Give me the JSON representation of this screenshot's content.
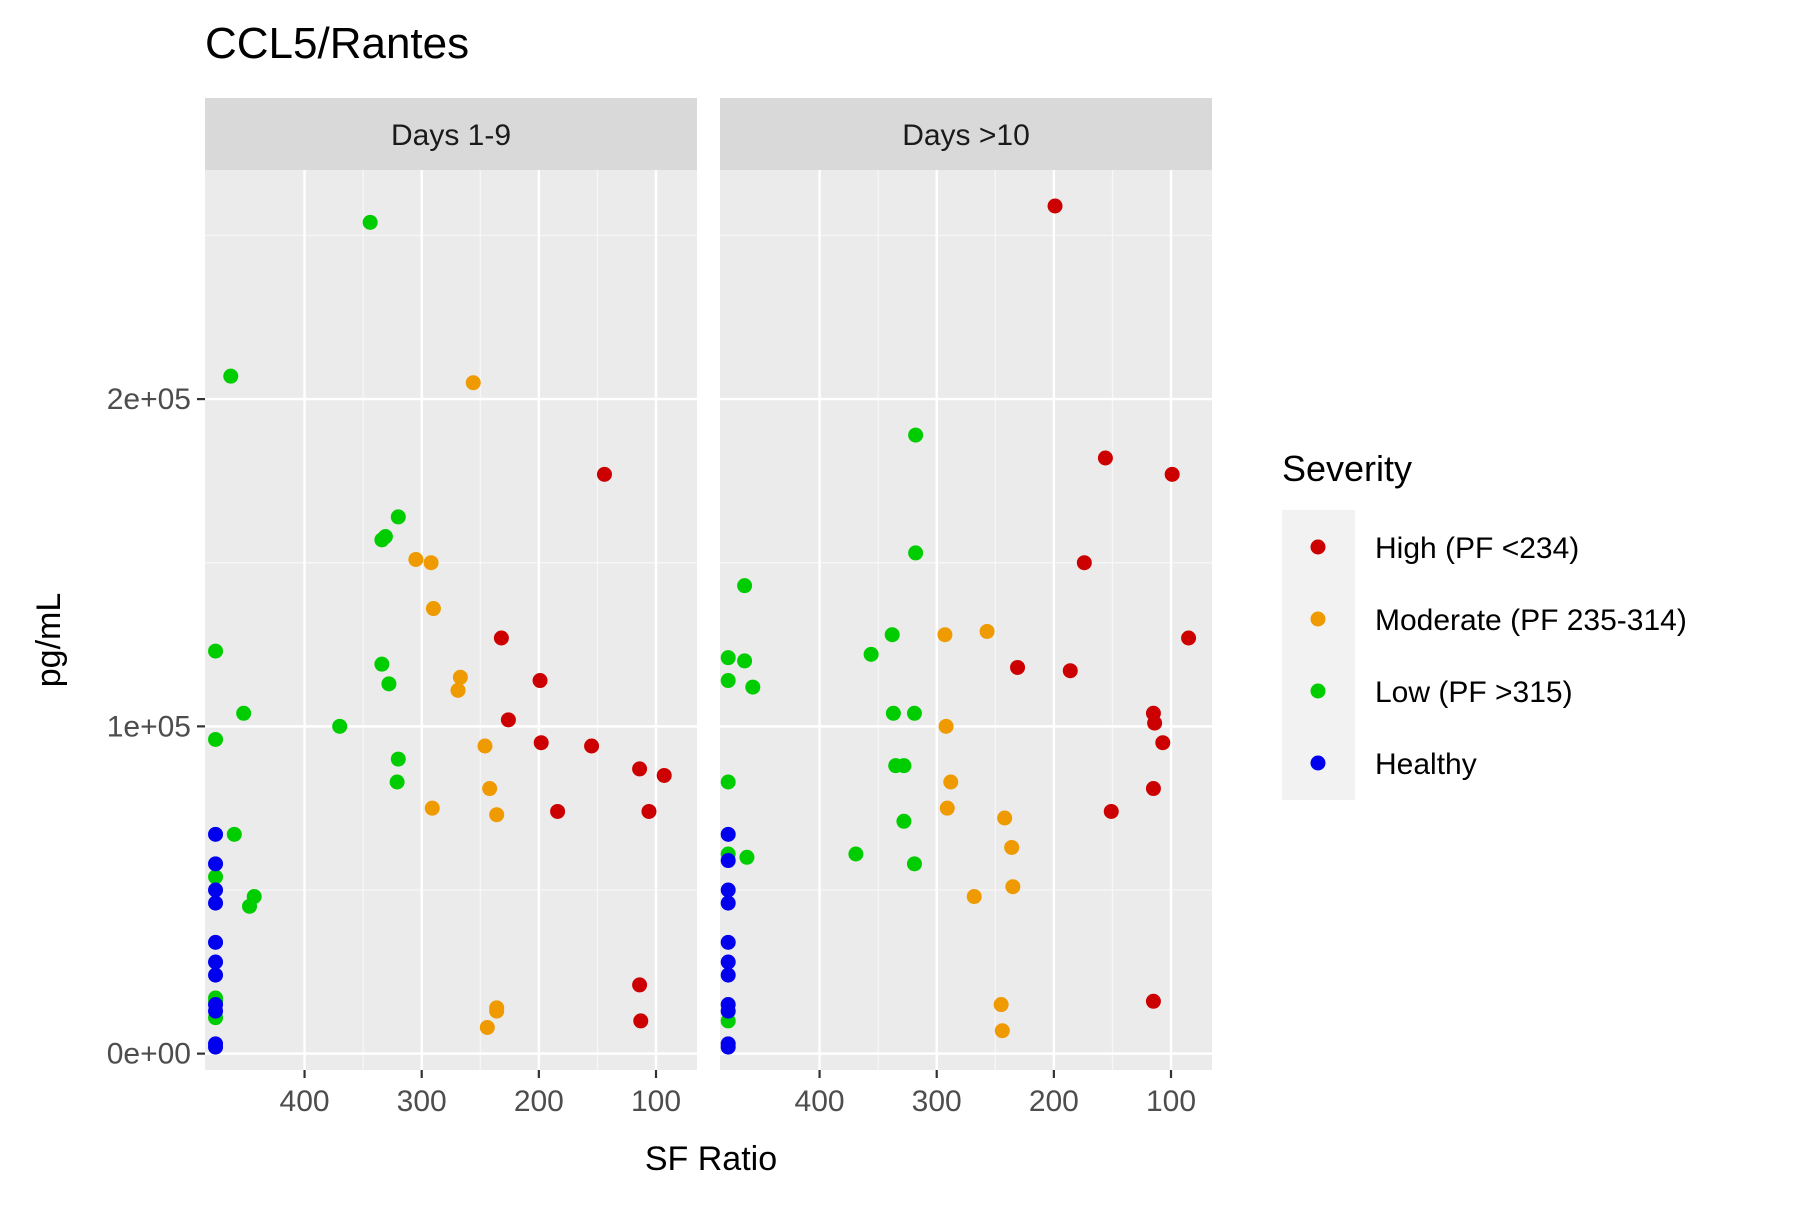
{
  "chart_data": {
    "type": "scatter",
    "title": "CCL5/Rantes",
    "xlabel": "SF Ratio",
    "ylabel": "pg/mL",
    "x_reversed": true,
    "xlim": [
      485,
      65
    ],
    "ylim": [
      -5000,
      270000
    ],
    "x_ticks": [
      400,
      300,
      200,
      100
    ],
    "x_tick_labels": [
      "400",
      "300",
      "200",
      "100"
    ],
    "y_ticks": [
      0,
      100000,
      200000
    ],
    "y_tick_labels": [
      "0e+00",
      "1e+05",
      "2e+05"
    ],
    "grid": true,
    "legend": {
      "title": "Severity",
      "position": "right",
      "entries": [
        {
          "label": "High (PF <234)",
          "color": "#CC0000"
        },
        {
          "label": "Moderate (PF 235-314)",
          "color": "#EE9A00"
        },
        {
          "label": "Low (PF >315)",
          "color": "#00CD00"
        },
        {
          "label": "Healthy",
          "color": "#0000EE"
        }
      ]
    },
    "panels": [
      {
        "label": "Days 1-9",
        "series": [
          {
            "name": "High (PF <234)",
            "color": "#CC0000",
            "points": [
              [
                144,
                177000
              ],
              [
                232,
                127000
              ],
              [
                199,
                114000
              ],
              [
                226,
                102000
              ],
              [
                198,
                95000
              ],
              [
                155,
                94000
              ],
              [
                114,
                87000
              ],
              [
                93,
                85000
              ],
              [
                184,
                74000
              ],
              [
                106,
                74000
              ],
              [
                114,
                21000
              ],
              [
                113,
                10000
              ]
            ]
          },
          {
            "name": "Moderate (PF 235-314)",
            "color": "#EE9A00",
            "points": [
              [
                256,
                205000
              ],
              [
                305,
                151000
              ],
              [
                292,
                150000
              ],
              [
                290,
                136000
              ],
              [
                267,
                115000
              ],
              [
                269,
                111000
              ],
              [
                246,
                94000
              ],
              [
                242,
                81000
              ],
              [
                291,
                75000
              ],
              [
                236,
                73000
              ],
              [
                236,
                14000
              ],
              [
                236,
                13000
              ],
              [
                244,
                8000
              ]
            ]
          },
          {
            "name": "Low (PF >315)",
            "color": "#00CD00",
            "points": [
              [
                344,
                254000
              ],
              [
                463,
                207000
              ],
              [
                320,
                164000
              ],
              [
                331,
                158000
              ],
              [
                334,
                157000
              ],
              [
                476,
                123000
              ],
              [
                334,
                119000
              ],
              [
                328,
                113000
              ],
              [
                452,
                104000
              ],
              [
                370,
                100000
              ],
              [
                476,
                96000
              ],
              [
                320,
                90000
              ],
              [
                321,
                83000
              ],
              [
                460,
                67000
              ],
              [
                476,
                54000
              ],
              [
                443,
                48000
              ],
              [
                447,
                45000
              ],
              [
                476,
                17000
              ],
              [
                476,
                16000
              ],
              [
                476,
                11000
              ]
            ]
          },
          {
            "name": "Healthy",
            "color": "#0000EE",
            "points": [
              [
                476,
                67000
              ],
              [
                476,
                58000
              ],
              [
                476,
                50000
              ],
              [
                476,
                46000
              ],
              [
                476,
                34000
              ],
              [
                476,
                28000
              ],
              [
                476,
                24000
              ],
              [
                476,
                15000
              ],
              [
                476,
                13000
              ],
              [
                476,
                3000
              ],
              [
                476,
                2000
              ]
            ]
          }
        ]
      },
      {
        "label": "Days >10",
        "series": [
          {
            "name": "High (PF <234)",
            "color": "#CC0000",
            "points": [
              [
                199,
                259000
              ],
              [
                156,
                182000
              ],
              [
                99,
                177000
              ],
              [
                174,
                150000
              ],
              [
                85,
                127000
              ],
              [
                231,
                118000
              ],
              [
                186,
                117000
              ],
              [
                115,
                104000
              ],
              [
                114,
                101000
              ],
              [
                107,
                95000
              ],
              [
                115,
                81000
              ],
              [
                151,
                74000
              ],
              [
                115,
                16000
              ]
            ]
          },
          {
            "name": "Moderate (PF 235-314)",
            "color": "#EE9A00",
            "points": [
              [
                257,
                129000
              ],
              [
                293,
                128000
              ],
              [
                292,
                100000
              ],
              [
                288,
                83000
              ],
              [
                291,
                75000
              ],
              [
                242,
                72000
              ],
              [
                236,
                63000
              ],
              [
                235,
                51000
              ],
              [
                268,
                48000
              ],
              [
                245,
                15000
              ],
              [
                244,
                7000
              ]
            ]
          },
          {
            "name": "Low (PF >315)",
            "color": "#00CD00",
            "points": [
              [
                318,
                189000
              ],
              [
                318,
                153000
              ],
              [
                464,
                143000
              ],
              [
                338,
                128000
              ],
              [
                356,
                122000
              ],
              [
                478,
                121000
              ],
              [
                464,
                120000
              ],
              [
                478,
                114000
              ],
              [
                457,
                112000
              ],
              [
                337,
                104000
              ],
              [
                319,
                104000
              ],
              [
                335,
                88000
              ],
              [
                328,
                88000
              ],
              [
                478,
                83000
              ],
              [
                328,
                71000
              ],
              [
                478,
                61000
              ],
              [
                369,
                61000
              ],
              [
                462,
                60000
              ],
              [
                319,
                58000
              ],
              [
                478,
                10000
              ]
            ]
          },
          {
            "name": "Healthy",
            "color": "#0000EE",
            "points": [
              [
                478,
                67000
              ],
              [
                478,
                59000
              ],
              [
                478,
                50000
              ],
              [
                478,
                46000
              ],
              [
                478,
                34000
              ],
              [
                478,
                28000
              ],
              [
                478,
                24000
              ],
              [
                478,
                15000
              ],
              [
                478,
                13000
              ],
              [
                478,
                3000
              ],
              [
                478,
                2000
              ]
            ]
          }
        ]
      }
    ]
  }
}
